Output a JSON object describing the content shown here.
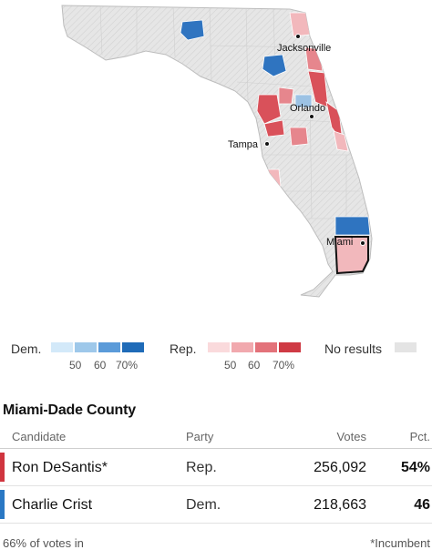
{
  "map": {
    "city_labels": [
      {
        "name": "Jacksonville"
      },
      {
        "name": "Orlando"
      },
      {
        "name": "Tampa"
      },
      {
        "name": "Miami"
      }
    ],
    "highlighted_county": "Miami-Dade",
    "colors": {
      "no_results": "#e0e0e0",
      "dem_strong": "#2f74c0",
      "dem_light": "#9cc2e4",
      "rep_strong": "#d9515a",
      "rep_mid": "#e6868d",
      "rep_light": "#f2b8bc",
      "outline": "#121212"
    }
  },
  "legend": {
    "dem_label": "Dem.",
    "rep_label": "Rep.",
    "no_results_label": "No results",
    "dem_colors": [
      "#d3e9f9",
      "#9ec8ea",
      "#5b9bd9",
      "#1f6bb8"
    ],
    "rep_colors": [
      "#fadadc",
      "#f1a9ae",
      "#e3727a",
      "#cf3a44"
    ],
    "no_results_color": "#e4e4e4",
    "dem_ticks": [
      "50",
      "60",
      "70%"
    ],
    "rep_ticks": [
      "50",
      "60",
      "70%"
    ]
  },
  "county": {
    "title": "Miami-Dade County"
  },
  "table": {
    "headers": {
      "candidate": "Candidate",
      "party": "Party",
      "votes": "Votes",
      "pct": "Pct."
    },
    "rows": [
      {
        "candidate": "Ron DeSantis*",
        "party": "Rep.",
        "votes": "256,092",
        "pct": "54%",
        "color": "#d0353f"
      },
      {
        "candidate": "Charlie Crist",
        "party": "Dem.",
        "votes": "218,663",
        "pct": "46",
        "color": "#2a78c4"
      }
    ]
  },
  "footer": {
    "reporting": "66% of votes in",
    "incumbent_note": "*Incumbent"
  }
}
